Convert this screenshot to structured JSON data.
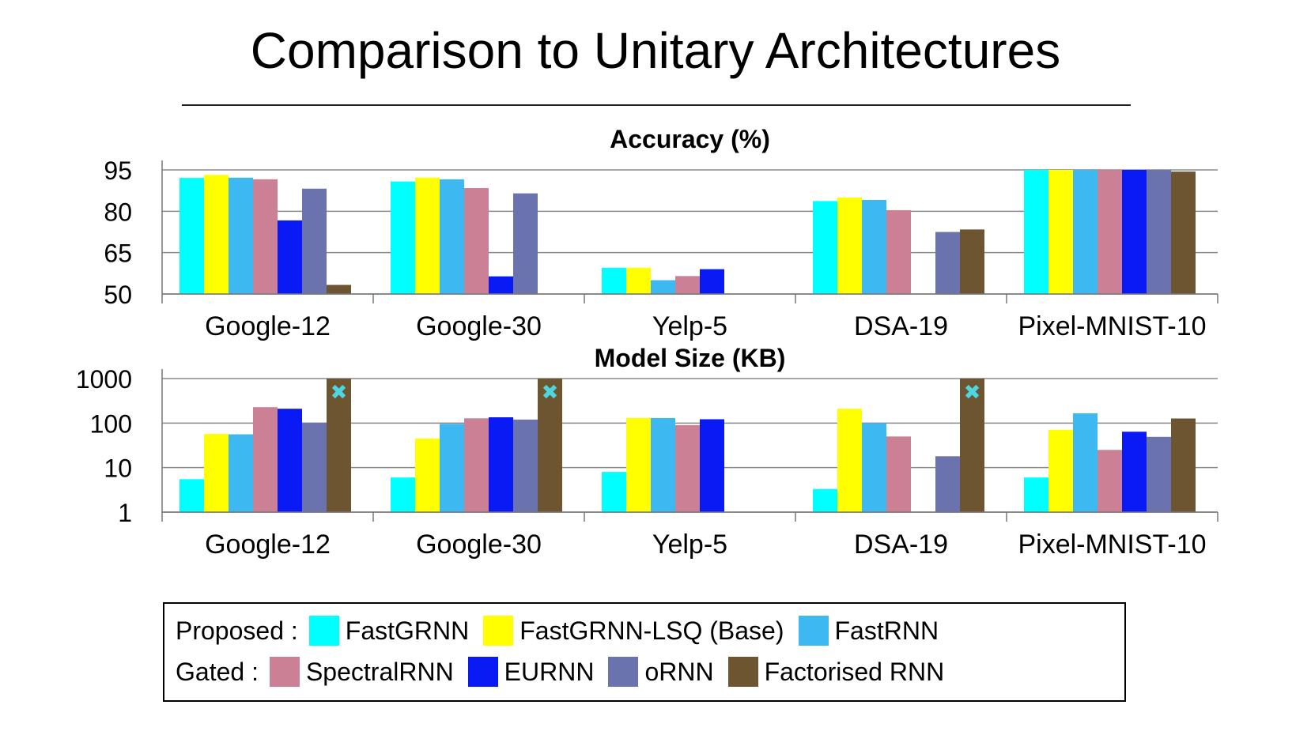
{
  "slide_title": "Comparison to Unitary Architectures",
  "colors": {
    "FastGRNN": "#00FFFF",
    "FastGRNN-LSQ (Base)": "#FFFF00",
    "FastRNN": "#3DB8F0",
    "SpectralRNN": "#CC8096",
    "EURNN": "#0A1AF5",
    "oRNN": "#6B73AE",
    "Factorised RNN": "#6E5532",
    "marker": "#4DD6E0"
  },
  "chart_data": [
    {
      "type": "bar",
      "title": "Accuracy (%)",
      "xlabel": "",
      "ylabel": "",
      "scale": "linear",
      "ylim": [
        50,
        95
      ],
      "yticks": [
        95,
        80,
        65,
        50
      ],
      "ytick_labels": [
        "95",
        "80",
        "65",
        "50"
      ],
      "grid": true,
      "categories": [
        "Google-12",
        "Google-30",
        "Yelp-5",
        "DSA-19",
        "Pixel-MNIST-10"
      ],
      "series": [
        {
          "name": "FastGRNN",
          "values": [
            92.1,
            90.8,
            59.5,
            83.7,
            98.2
          ]
        },
        {
          "name": "FastGRNN-LSQ (Base)",
          "values": [
            93.2,
            92.2,
            59.5,
            85.0,
            98.7
          ]
        },
        {
          "name": "FastRNN",
          "values": [
            92.2,
            91.6,
            55.0,
            84.1,
            96.4
          ]
        },
        {
          "name": "SpectralRNN",
          "values": [
            91.6,
            88.4,
            56.5,
            80.4,
            97.7
          ]
        },
        {
          "name": "EURNN",
          "values": [
            76.7,
            56.4,
            59.0,
            null,
            95.4
          ]
        },
        {
          "name": "oRNN",
          "values": [
            88.2,
            86.5,
            null,
            72.5,
            97.2
          ]
        },
        {
          "name": "Factorised RNN",
          "values": [
            53.3,
            null,
            null,
            73.4,
            94.4
          ]
        }
      ]
    },
    {
      "type": "bar",
      "title": "Model Size (KB)",
      "xlabel": "",
      "ylabel": "",
      "scale": "log",
      "ylim": [
        1,
        1000
      ],
      "yticks": [
        1000,
        100,
        10,
        1
      ],
      "ytick_labels": [
        "1000",
        "100",
        "10",
        "1"
      ],
      "grid": true,
      "categories": [
        "Google-12",
        "Google-30",
        "Yelp-5",
        "DSA-19",
        "Pixel-MNIST-10"
      ],
      "series": [
        {
          "name": "FastGRNN",
          "values": [
            5.5,
            6,
            8,
            3.3,
            6
          ]
        },
        {
          "name": "FastGRNN-LSQ (Base)",
          "values": [
            57,
            45,
            130,
            210,
            71
          ]
        },
        {
          "name": "FastRNN",
          "values": [
            56,
            96,
            130,
            100,
            166
          ]
        },
        {
          "name": "SpectralRNN",
          "values": [
            228,
            128,
            90,
            50,
            25
          ]
        },
        {
          "name": "EURNN",
          "values": [
            210,
            135,
            122,
            null,
            64
          ]
        },
        {
          "name": "oRNN",
          "values": [
            102,
            120,
            null,
            18,
            49
          ]
        },
        {
          "name": "Factorised RNN",
          "values": [
            1000,
            1000,
            null,
            1000,
            127
          ]
        }
      ],
      "annotations": [
        {
          "category": "Google-12",
          "series": "Factorised RNN",
          "marker": "✖"
        },
        {
          "category": "Google-30",
          "series": "Factorised RNN",
          "marker": "✖"
        },
        {
          "category": "DSA-19",
          "series": "Factorised RNN",
          "marker": "✖"
        }
      ]
    }
  ],
  "legend": {
    "rows": [
      {
        "label": "Proposed :",
        "items": [
          "FastGRNN",
          "FastGRNN-LSQ (Base)",
          "FastRNN"
        ]
      },
      {
        "label": "Gated :",
        "items": [
          "SpectralRNN",
          "EURNN",
          "oRNN",
          "Factorised RNN"
        ]
      }
    ]
  }
}
